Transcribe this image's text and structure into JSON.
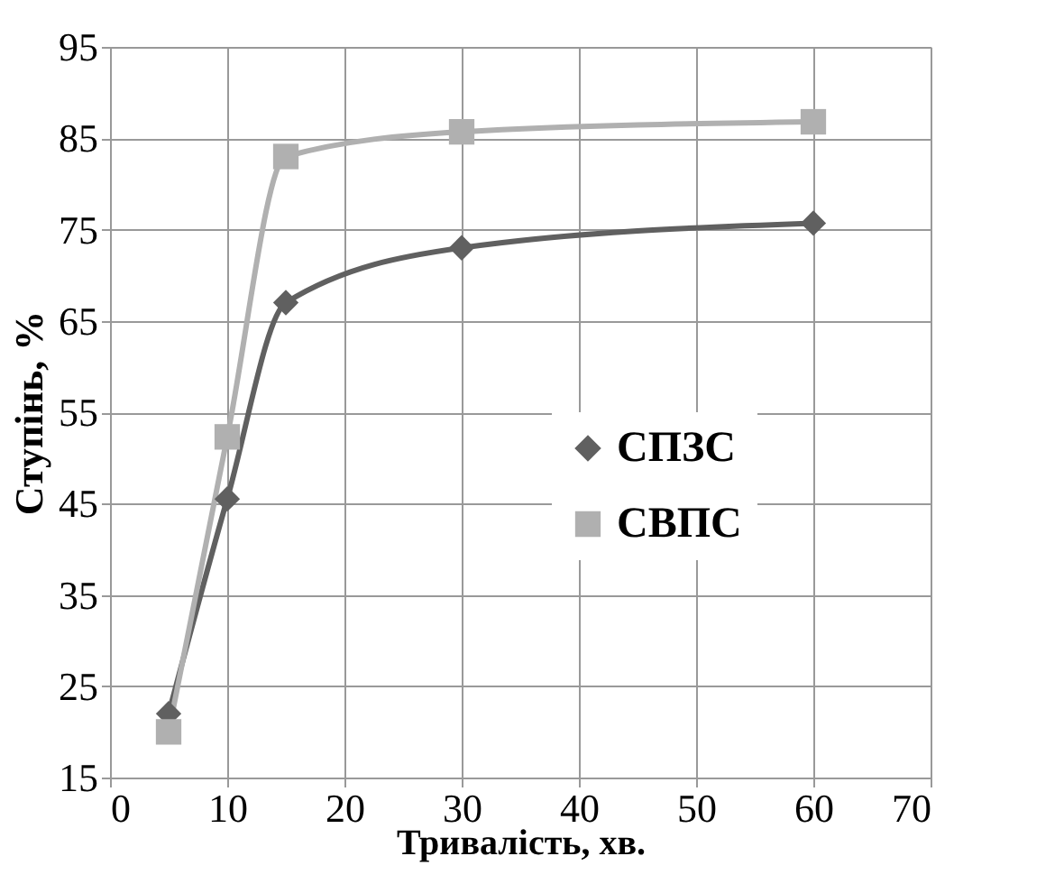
{
  "chart_data": {
    "type": "line",
    "xlabel": "Тривалість, хв.",
    "ylabel": "Ступінь, %",
    "x": [
      5,
      10,
      15,
      30,
      60
    ],
    "series": [
      {
        "name": "СПЗС",
        "color": "#606060",
        "marker": "diamond",
        "values": [
          22,
          45.5,
          67,
          73,
          75.7
        ]
      },
      {
        "name": "СВПС",
        "color": "#b0b0b0",
        "marker": "square",
        "values": [
          20,
          52.3,
          83,
          85.7,
          86.8
        ]
      }
    ],
    "xlim": [
      0,
      70
    ],
    "xticks": [
      0,
      10,
      20,
      30,
      40,
      50,
      60,
      70
    ],
    "ylim": [
      15,
      95
    ],
    "yticks": [
      15,
      25,
      35,
      45,
      55,
      65,
      75,
      85,
      95
    ],
    "grid": true,
    "legend": "right",
    "line_style": "solid"
  }
}
